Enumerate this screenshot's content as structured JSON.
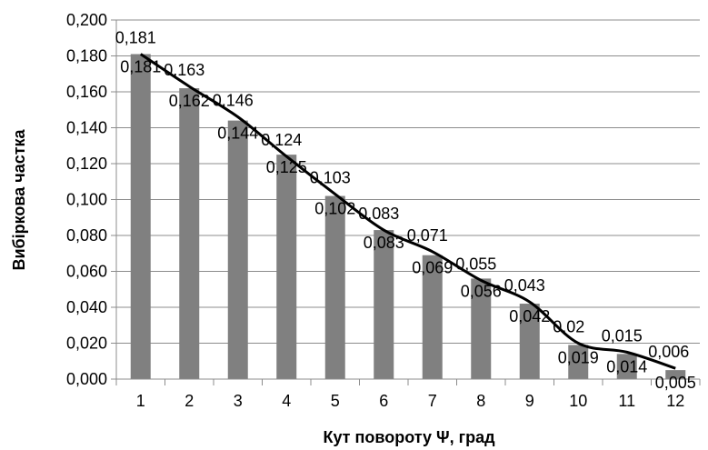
{
  "chart_data": {
    "type": "bar",
    "xlabel": "Кут повороту Ψ, град",
    "ylabel": "Вибіркова частка",
    "categories": [
      "1",
      "2",
      "3",
      "4",
      "5",
      "6",
      "7",
      "8",
      "9",
      "10",
      "11",
      "12"
    ],
    "y_ticks": [
      "0,000",
      "0,020",
      "0,040",
      "0,060",
      "0,080",
      "0,100",
      "0,120",
      "0,140",
      "0,160",
      "0,180",
      "0,200"
    ],
    "ylim": [
      0,
      0.2
    ],
    "grid": true,
    "series": [
      {
        "type": "bar",
        "color": "#808080",
        "values": [
          0.181,
          0.162,
          0.144,
          0.125,
          0.102,
          0.083,
          0.069,
          0.056,
          0.042,
          0.019,
          0.014,
          0.005
        ],
        "labels": [
          "0,181",
          "0,162",
          "0,144",
          "0,125",
          "0,102",
          "0,083",
          "0,069",
          "0,056",
          "0,042",
          "0,019",
          "0,014",
          "0,005"
        ]
      },
      {
        "type": "line",
        "color": "#000000",
        "values": [
          0.181,
          0.163,
          0.146,
          0.124,
          0.103,
          0.083,
          0.071,
          0.055,
          0.043,
          0.02,
          0.015,
          0.006
        ],
        "labels": [
          "0,181",
          "0,163",
          "0,146",
          "0,124",
          "0,103",
          "0,083",
          "0,071",
          "0,055",
          "0,043",
          "0,02",
          "0,015",
          "0,006"
        ]
      }
    ]
  }
}
